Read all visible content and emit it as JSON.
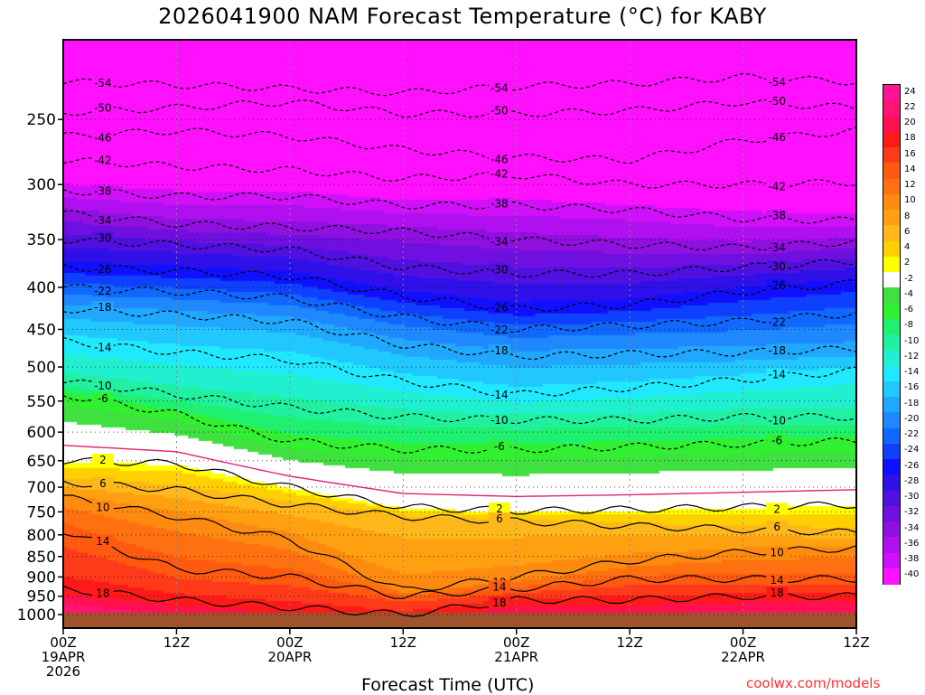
{
  "title": "2026041900 NAM Forecast Temperature (°C) for KABY",
  "xlabel": "Forecast Time (UTC)",
  "source": "coolwx.com/models",
  "chart_data": {
    "type": "heatmap",
    "title": "2026041900 NAM Forecast Temperature (°C) for KABY",
    "xlabel": "Forecast Time (UTC)",
    "ylabel": "",
    "x_ticks": [
      {
        "label": [
          "00Z",
          "19APR",
          "2026"
        ],
        "hour": 0
      },
      {
        "label": [
          "12Z"
        ],
        "hour": 12
      },
      {
        "label": [
          "00Z",
          "20APR"
        ],
        "hour": 24
      },
      {
        "label": [
          "12Z"
        ],
        "hour": 36
      },
      {
        "label": [
          "00Z",
          "21APR"
        ],
        "hour": 48
      },
      {
        "label": [
          "12Z"
        ],
        "hour": 60
      },
      {
        "label": [
          "00Z",
          "22APR"
        ],
        "hour": 72
      },
      {
        "label": [
          "12Z"
        ],
        "hour": 84
      }
    ],
    "x_range_hours": [
      0,
      84
    ],
    "y_ticks_hpa": [
      250,
      300,
      350,
      400,
      450,
      500,
      550,
      600,
      650,
      700,
      750,
      800,
      850,
      900,
      950,
      1000
    ],
    "y_range_hpa": [
      200,
      1000
    ],
    "y_scale": "log-pressure",
    "legend_placement": "right",
    "legend_levels": [
      24,
      22,
      20,
      18,
      16,
      14,
      12,
      10,
      8,
      6,
      4,
      2,
      -2,
      -4,
      -6,
      -8,
      -10,
      -12,
      -14,
      -16,
      -18,
      -20,
      -22,
      -24,
      -26,
      -28,
      -30,
      -32,
      -34,
      -36,
      -38,
      -40
    ],
    "legend_colors": [
      "#ff1493",
      "#ff1474",
      "#ff1050",
      "#ff1a1a",
      "#ff3a1a",
      "#ff5a10",
      "#ff7010",
      "#ff8a10",
      "#ffa010",
      "#ffb81a",
      "#ffd000",
      "#ffff00",
      "#ffffff",
      "#40e040",
      "#30f030",
      "#20f070",
      "#20f0a0",
      "#20f0d0",
      "#20e8ff",
      "#20c8ff",
      "#20a8ff",
      "#2088ff",
      "#1068ff",
      "#1040ff",
      "#1010ff",
      "#3010e8",
      "#5010e0",
      "#7010e0",
      "#9010e0",
      "#b010f0",
      "#d010f8",
      "#ff10ff"
    ],
    "series": [
      {
        "name": "-54",
        "values": [
          [
            0,
            225
          ],
          [
            18,
            228
          ],
          [
            36,
            232
          ],
          [
            48,
            228
          ],
          [
            60,
            226
          ],
          [
            72,
            222
          ],
          [
            84,
            225
          ]
        ]
      },
      {
        "name": "-50",
        "values": [
          [
            0,
            245
          ],
          [
            12,
            242
          ],
          [
            24,
            238
          ],
          [
            36,
            246
          ],
          [
            48,
            246
          ],
          [
            60,
            244
          ],
          [
            72,
            238
          ],
          [
            84,
            242
          ]
        ]
      },
      {
        "name": "-46",
        "values": [
          [
            0,
            262
          ],
          [
            12,
            258
          ],
          [
            24,
            262
          ],
          [
            36,
            272
          ],
          [
            48,
            278
          ],
          [
            60,
            280
          ],
          [
            72,
            265
          ],
          [
            84,
            258
          ]
        ]
      },
      {
        "name": "-42",
        "values": [
          [
            0,
            280
          ],
          [
            12,
            285
          ],
          [
            24,
            288
          ],
          [
            36,
            295
          ],
          [
            48,
            292
          ],
          [
            60,
            300
          ],
          [
            72,
            300
          ],
          [
            84,
            298
          ]
        ]
      },
      {
        "name": "-38",
        "values": [
          [
            0,
            305
          ],
          [
            12,
            310
          ],
          [
            24,
            310
          ],
          [
            36,
            318
          ],
          [
            48,
            318
          ],
          [
            60,
            322
          ],
          [
            72,
            330
          ],
          [
            84,
            332
          ]
        ]
      },
      {
        "name": "-34",
        "values": [
          [
            0,
            325
          ],
          [
            12,
            335
          ],
          [
            24,
            338
          ],
          [
            36,
            342
          ],
          [
            48,
            350
          ],
          [
            60,
            355
          ],
          [
            72,
            358
          ],
          [
            84,
            352
          ]
        ]
      },
      {
        "name": "-30",
        "values": [
          [
            0,
            350
          ],
          [
            12,
            355
          ],
          [
            24,
            360
          ],
          [
            36,
            378
          ],
          [
            48,
            385
          ],
          [
            60,
            385
          ],
          [
            72,
            378
          ],
          [
            84,
            372
          ]
        ]
      },
      {
        "name": "-26",
        "values": [
          [
            0,
            378
          ],
          [
            12,
            382
          ],
          [
            24,
            388
          ],
          [
            36,
            410
          ],
          [
            48,
            425
          ],
          [
            60,
            420
          ],
          [
            72,
            405
          ],
          [
            84,
            395
          ]
        ]
      },
      {
        "name": "-22",
        "values": [
          [
            0,
            400
          ],
          [
            12,
            405
          ],
          [
            24,
            412
          ],
          [
            36,
            435
          ],
          [
            48,
            450
          ],
          [
            60,
            445
          ],
          [
            72,
            440
          ],
          [
            84,
            430
          ]
        ]
      },
      {
        "name": "-18",
        "values": [
          [
            0,
            425
          ],
          [
            12,
            432
          ],
          [
            24,
            440
          ],
          [
            36,
            470
          ],
          [
            48,
            485
          ],
          [
            60,
            482
          ],
          [
            72,
            480
          ],
          [
            84,
            475
          ]
        ]
      },
      {
        "name": "-14",
        "values": [
          [
            0,
            465
          ],
          [
            12,
            480
          ],
          [
            24,
            490
          ],
          [
            36,
            520
          ],
          [
            48,
            540
          ],
          [
            60,
            530
          ],
          [
            72,
            518
          ],
          [
            84,
            505
          ]
        ]
      },
      {
        "name": "-10",
        "values": [
          [
            0,
            520
          ],
          [
            12,
            540
          ],
          [
            24,
            560
          ],
          [
            36,
            575
          ],
          [
            48,
            580
          ],
          [
            60,
            580
          ],
          [
            72,
            575
          ],
          [
            84,
            575
          ]
        ]
      },
      {
        "name": "-6",
        "values": [
          [
            0,
            540
          ],
          [
            12,
            570
          ],
          [
            24,
            615
          ],
          [
            36,
            630
          ],
          [
            48,
            630
          ],
          [
            60,
            625
          ],
          [
            72,
            620
          ],
          [
            84,
            615
          ]
        ]
      },
      {
        "name": "2",
        "values": [
          [
            0,
            650
          ],
          [
            12,
            655
          ],
          [
            24,
            700
          ],
          [
            36,
            740
          ],
          [
            48,
            748
          ],
          [
            60,
            745
          ],
          [
            72,
            740
          ],
          [
            84,
            735
          ]
        ]
      },
      {
        "name": "6",
        "values": [
          [
            0,
            690
          ],
          [
            12,
            705
          ],
          [
            24,
            735
          ],
          [
            36,
            760
          ],
          [
            48,
            770
          ],
          [
            60,
            780
          ],
          [
            72,
            788
          ],
          [
            84,
            795
          ]
        ]
      },
      {
        "name": "10",
        "values": [
          [
            0,
            720
          ],
          [
            12,
            760
          ],
          [
            24,
            810
          ],
          [
            36,
            935
          ],
          [
            48,
            900
          ],
          [
            60,
            860
          ],
          [
            72,
            840
          ],
          [
            84,
            830
          ]
        ]
      },
      {
        "name": "14",
        "values": [
          [
            0,
            790
          ],
          [
            12,
            880
          ],
          [
            24,
            900
          ],
          [
            36,
            950
          ],
          [
            48,
            930
          ],
          [
            60,
            905
          ],
          [
            72,
            905
          ],
          [
            84,
            905
          ]
        ]
      },
      {
        "name": "18",
        "values": [
          [
            0,
            930
          ],
          [
            12,
            960
          ],
          [
            24,
            980
          ],
          [
            36,
            1000
          ],
          [
            48,
            960
          ],
          [
            60,
            960
          ],
          [
            72,
            950
          ],
          [
            84,
            950
          ]
        ]
      }
    ]
  }
}
